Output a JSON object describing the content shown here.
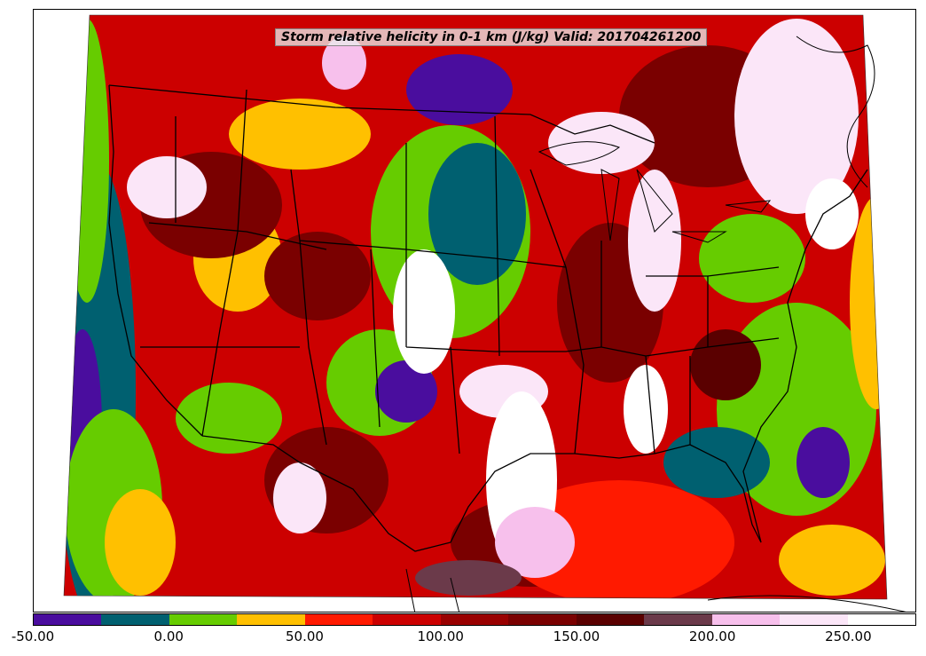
{
  "title": "Storm relative helicity in 0-1 km (J/kg) Valid: 201704261200",
  "colorbar": {
    "colors": [
      "#4a0d9e",
      "#006070",
      "#66cc00",
      "#ffc000",
      "#ff1a00",
      "#cc0000",
      "#990000",
      "#7a0000",
      "#5a0000",
      "#6b3a4a",
      "#f7c0ec",
      "#fbe6f8",
      "#ffffff"
    ],
    "tick_labels": [
      "-50.00",
      "0.00",
      "50.00",
      "100.00",
      "150.00",
      "200.00",
      "250.00"
    ]
  },
  "map": {
    "region": "Continental United States",
    "features": [
      "state-boundaries",
      "coastlines",
      "country-boundaries"
    ]
  }
}
